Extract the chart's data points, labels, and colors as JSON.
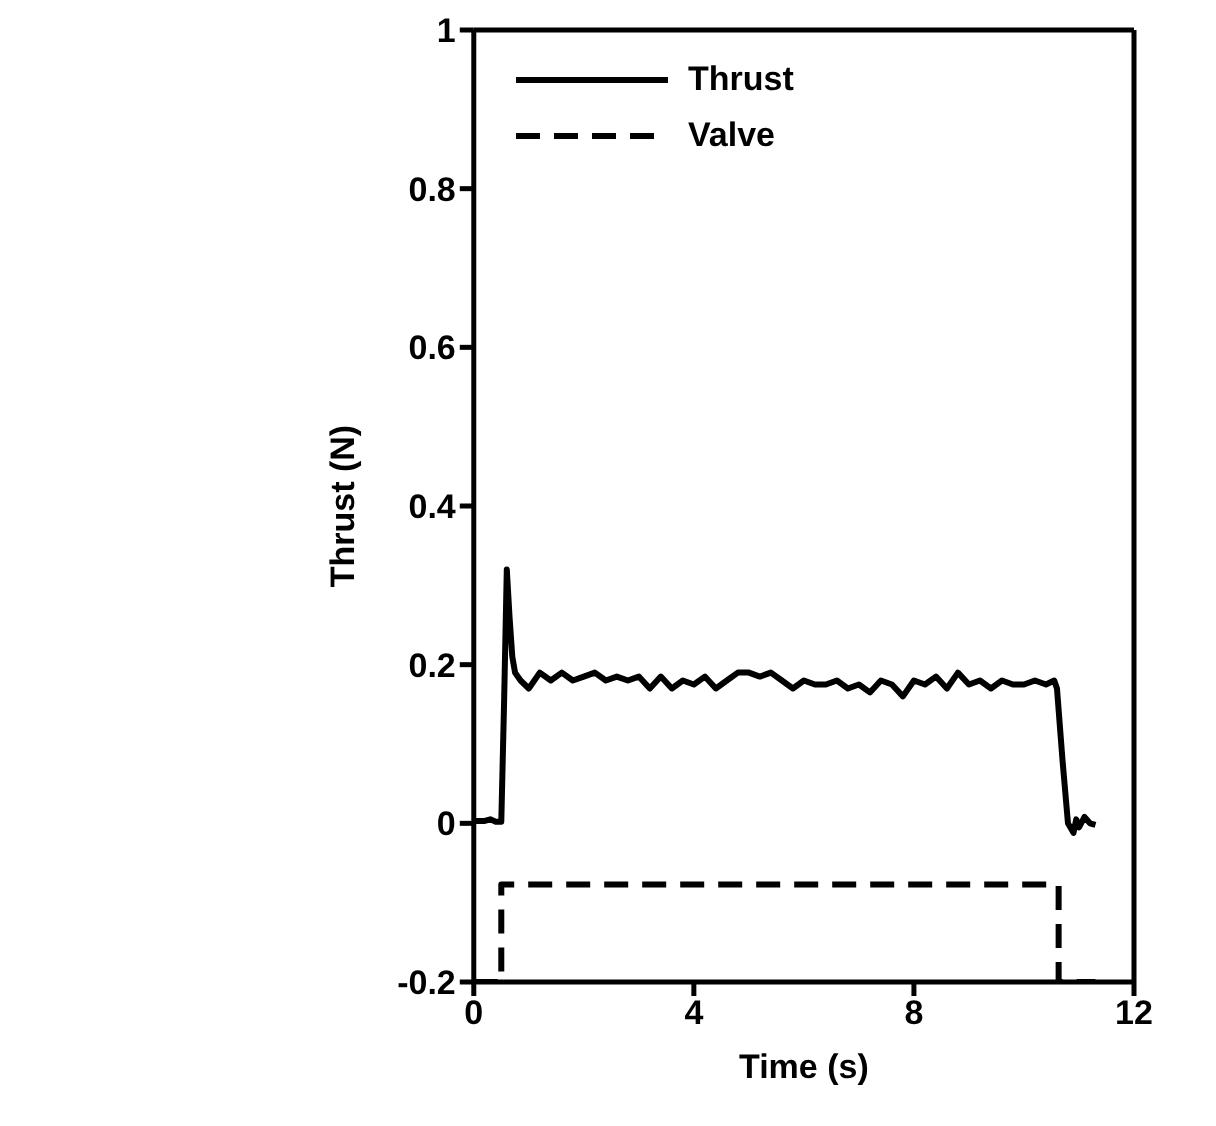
{
  "chart_data": {
    "type": "line",
    "xlabel": "Time (s)",
    "ylabel": "Thrust (N)",
    "xlim": [
      0,
      12
    ],
    "xticks": [
      0,
      4,
      8,
      12
    ],
    "ylim": [
      -0.2,
      1
    ],
    "yticks": [
      -0.2,
      0,
      0.2,
      0.4,
      0.6,
      0.8,
      1
    ],
    "legend": "top left",
    "marker": "none",
    "series": [
      {
        "name": "Thrust",
        "color": "#000000",
        "line_style": "solid",
        "x": [
          0,
          0.2,
          0.3,
          0.4,
          0.5,
          0.55,
          0.6,
          0.65,
          0.7,
          0.75,
          0.85,
          1.0,
          1.2,
          1.4,
          1.6,
          1.8,
          2.0,
          2.2,
          2.4,
          2.6,
          2.8,
          3.0,
          3.2,
          3.4,
          3.6,
          3.8,
          4.0,
          4.2,
          4.4,
          4.6,
          4.8,
          5.0,
          5.2,
          5.4,
          5.6,
          5.8,
          6.0,
          6.2,
          6.4,
          6.6,
          6.8,
          7.0,
          7.2,
          7.4,
          7.6,
          7.8,
          8.0,
          8.2,
          8.4,
          8.6,
          8.8,
          9.0,
          9.2,
          9.4,
          9.6,
          9.8,
          10.0,
          10.2,
          10.4,
          10.55,
          10.6,
          10.7,
          10.8,
          10.9,
          10.95,
          11.0,
          11.1,
          11.2,
          11.3
        ],
        "values": [
          0.003,
          0.003,
          0.005,
          0.002,
          0.002,
          0.15,
          0.32,
          0.26,
          0.21,
          0.19,
          0.18,
          0.17,
          0.19,
          0.18,
          0.19,
          0.18,
          0.185,
          0.19,
          0.18,
          0.185,
          0.18,
          0.185,
          0.17,
          0.185,
          0.17,
          0.18,
          0.175,
          0.185,
          0.17,
          0.18,
          0.19,
          0.19,
          0.185,
          0.19,
          0.18,
          0.17,
          0.18,
          0.175,
          0.175,
          0.18,
          0.17,
          0.175,
          0.165,
          0.18,
          0.175,
          0.16,
          0.18,
          0.175,
          0.185,
          0.17,
          0.19,
          0.175,
          0.18,
          0.17,
          0.18,
          0.175,
          0.175,
          0.18,
          0.175,
          0.18,
          0.17,
          0.08,
          0.0,
          -0.012,
          0.005,
          -0.005,
          0.008,
          0.0,
          -0.002
        ]
      },
      {
        "name": "Valve",
        "color": "#000000",
        "type": "step",
        "line_style": "dashed",
        "x": [
          0,
          0.5,
          10.63,
          11.3
        ],
        "values": [
          -0.2,
          -0.077,
          -0.2,
          -0.2
        ]
      }
    ]
  }
}
